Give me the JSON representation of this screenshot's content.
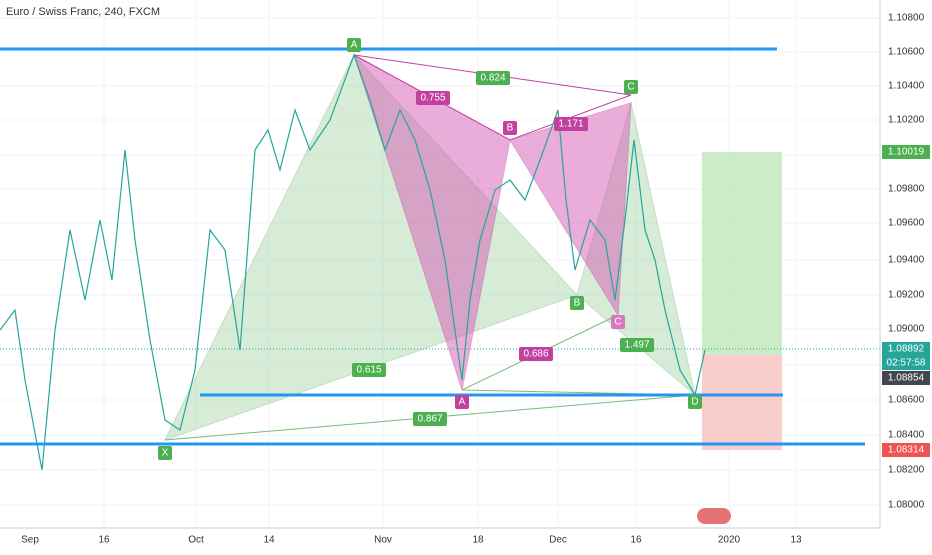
{
  "header": {
    "title": "Euro / Swiss Franc, 240, FXCM"
  },
  "price_axis": [
    "1.10800",
    "1.10600",
    "1.10400",
    "1.10200",
    "1.09800",
    "1.09600",
    "1.09400",
    "1.09200",
    "1.09000",
    "1.08600",
    "1.08400",
    "1.08200",
    "1.08000"
  ],
  "badges": {
    "target": "1.10019",
    "last": "1.08892",
    "countdown": "02:57:58",
    "prev": "1.08854",
    "stop": "1.08314"
  },
  "time_axis": [
    "Sep",
    "16",
    "Oct",
    "14",
    "Nov",
    "18",
    "Dec",
    "16",
    "2020",
    "13"
  ],
  "pattern_points": [
    "A",
    "B",
    "C",
    "D",
    "X",
    "A",
    "B",
    "C"
  ],
  "ratios": [
    "0.824",
    "0.755",
    "1.171",
    "0.615",
    "0.686",
    "0.867",
    "1.497"
  ]
}
